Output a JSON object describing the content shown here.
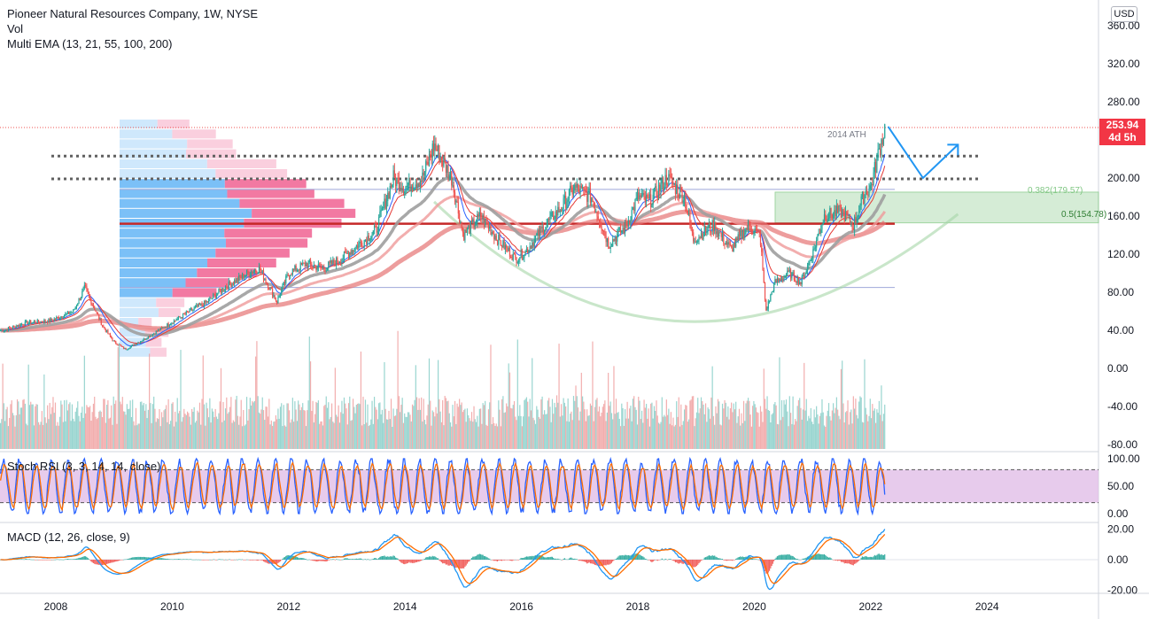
{
  "legend": {
    "title": "Pioneer Natural Resources Company, 1W, NYSE",
    "vol": "Vol",
    "ema": "Multi EMA (13, 21, 55, 100, 200)",
    "stoch": "Stoch RSI (3, 3, 14, 14, close)",
    "macd": "MACD (12, 26, close, 9)"
  },
  "currency_button": "USD",
  "last_price": {
    "value": "253.94",
    "countdown": "4d 5h",
    "color": "#f23645"
  },
  "annotations": {
    "ath_label": "2014 ATH",
    "fib_382": "0.382(179.57)",
    "fib_5": "0.5(154.78)"
  },
  "colors": {
    "up": "#26a69a",
    "down": "#ef5350",
    "ema13": "#2962ff",
    "ema21": "#e53935",
    "ema55": "#9e9e9e",
    "ema200": "#e57373",
    "stoch_k": "#2962ff",
    "stoch_d": "#ff6d00",
    "stoch_band": "#e1bee7",
    "fib_zone": "#c8e6c9",
    "support_line": "#c62828",
    "projection": "#2196f3"
  },
  "chart_data": [
    {
      "type": "candlestick",
      "title": "Pioneer Natural Resources Company, 1W, NYSE",
      "x_ticks": [
        "2008",
        "2010",
        "2012",
        "2014",
        "2016",
        "2018",
        "2020",
        "2022",
        "2024"
      ],
      "y_ticks": [
        "360.00",
        "320.00",
        "280.00",
        "240.00",
        "200.00",
        "160.00",
        "120.00",
        "80.00",
        "40.00",
        "0.00",
        "-40.00",
        "-80.00"
      ],
      "ylim": [
        -90,
        370
      ],
      "close_series": [
        [
          2007.1,
          40
        ],
        [
          2007.5,
          48
        ],
        [
          2007.9,
          50
        ],
        [
          2008.3,
          60
        ],
        [
          2008.5,
          85
        ],
        [
          2008.8,
          45
        ],
        [
          2009.0,
          28
        ],
        [
          2009.2,
          20
        ],
        [
          2009.5,
          30
        ],
        [
          2009.9,
          45
        ],
        [
          2010.3,
          60
        ],
        [
          2010.6,
          70
        ],
        [
          2010.9,
          85
        ],
        [
          2011.3,
          100
        ],
        [
          2011.5,
          105
        ],
        [
          2011.8,
          70
        ],
        [
          2012.0,
          100
        ],
        [
          2012.3,
          110
        ],
        [
          2012.6,
          105
        ],
        [
          2012.9,
          115
        ],
        [
          2013.2,
          130
        ],
        [
          2013.5,
          145
        ],
        [
          2013.8,
          200
        ],
        [
          2014.0,
          190
        ],
        [
          2014.3,
          200
        ],
        [
          2014.5,
          235
        ],
        [
          2014.8,
          200
        ],
        [
          2015.0,
          140
        ],
        [
          2015.3,
          160
        ],
        [
          2015.6,
          135
        ],
        [
          2015.9,
          115
        ],
        [
          2016.1,
          125
        ],
        [
          2016.4,
          150
        ],
        [
          2016.7,
          170
        ],
        [
          2016.9,
          190
        ],
        [
          2017.2,
          180
        ],
        [
          2017.5,
          130
        ],
        [
          2017.8,
          150
        ],
        [
          2018.0,
          180
        ],
        [
          2018.2,
          175
        ],
        [
          2018.5,
          200
        ],
        [
          2018.8,
          180
        ],
        [
          2018.95,
          135
        ],
        [
          2019.3,
          150
        ],
        [
          2019.6,
          125
        ],
        [
          2019.9,
          150
        ],
        [
          2020.1,
          140
        ],
        [
          2020.2,
          60
        ],
        [
          2020.35,
          90
        ],
        [
          2020.6,
          100
        ],
        [
          2020.8,
          90
        ],
        [
          2021.0,
          120
        ],
        [
          2021.2,
          160
        ],
        [
          2021.5,
          165
        ],
        [
          2021.7,
          150
        ],
        [
          2021.9,
          185
        ],
        [
          2022.0,
          190
        ],
        [
          2022.15,
          230
        ],
        [
          2022.25,
          254
        ]
      ],
      "projection": [
        [
          2022.3,
          254
        ],
        [
          2022.9,
          200
        ],
        [
          2023.5,
          235
        ]
      ],
      "ath_level": 236,
      "upper_level": 200,
      "support_level": 152,
      "range_high": 188,
      "range_low": 85,
      "fib_382": 179.57,
      "fib_5": 154.78,
      "last": 253.94
    },
    {
      "type": "line",
      "title": "Stoch RSI (3, 3, 14, 14, close)",
      "y_ticks": [
        "100.00",
        "50.00",
        "0.00"
      ],
      "ylim": [
        0,
        100
      ],
      "bands": [
        20,
        80
      ]
    },
    {
      "type": "bar",
      "title": "MACD (12, 26, close, 9)",
      "y_ticks": [
        "20.00",
        "0.00",
        "-20.00"
      ],
      "ylim": [
        -20,
        20
      ]
    }
  ]
}
